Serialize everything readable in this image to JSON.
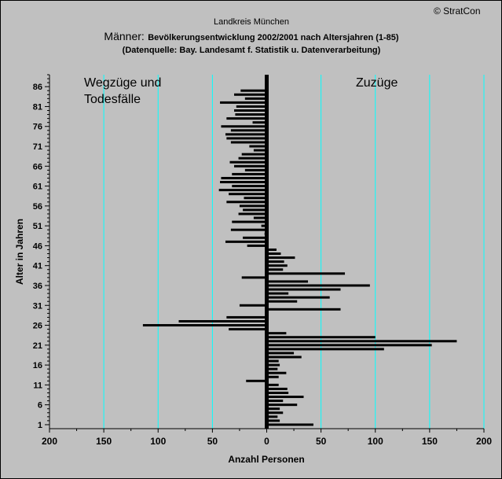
{
  "copyright": "© StratCon",
  "chart_data": {
    "type": "bar",
    "orientation": "horizontal",
    "title": "Landkreis München",
    "title_prefix": "Männer:",
    "subtitle": "Bevölkerungsentwicklung 2002/2001  nach Altersjahren (1-85)",
    "source": "(Datenquelle: Bay. Landesamt f. Statistik u. Datenverarbeitung)",
    "xlabel": "Anzahl Personen",
    "ylabel": "Alter in Jahren",
    "left_label_line1": "Wegzüge und",
    "left_label_line2": "Todesfälle",
    "right_label": "Zuzüge",
    "left_label_color": "#ff0000",
    "right_label_color": "#008000",
    "bar_color": "#000000",
    "gridline_color": "#00ffff",
    "xlim": [
      -200,
      200
    ],
    "ylim": [
      0,
      89
    ],
    "x_ticks": [
      -200,
      -150,
      -100,
      -50,
      0,
      50,
      100,
      150,
      200
    ],
    "x_tick_labels": [
      "200",
      "150",
      "100",
      "50",
      "0",
      "50",
      "100",
      "150",
      "200"
    ],
    "y_tick_labels": [
      1,
      6,
      11,
      16,
      21,
      26,
      31,
      36,
      41,
      46,
      51,
      56,
      61,
      66,
      71,
      76,
      81,
      86
    ],
    "ages": [
      1,
      2,
      3,
      4,
      5,
      6,
      7,
      8,
      9,
      10,
      11,
      12,
      13,
      14,
      15,
      16,
      17,
      18,
      19,
      20,
      21,
      22,
      23,
      24,
      25,
      26,
      27,
      28,
      29,
      30,
      31,
      32,
      33,
      34,
      35,
      36,
      37,
      38,
      39,
      40,
      41,
      42,
      43,
      44,
      45,
      46,
      47,
      48,
      49,
      50,
      51,
      52,
      53,
      54,
      55,
      56,
      57,
      58,
      59,
      60,
      61,
      62,
      63,
      64,
      65,
      66,
      67,
      68,
      69,
      70,
      71,
      72,
      73,
      74,
      75,
      76,
      77,
      78,
      79,
      80,
      81,
      82,
      83,
      84,
      85
    ],
    "values": [
      43,
      12,
      10,
      15,
      12,
      28,
      15,
      34,
      20,
      19,
      11,
      -19,
      11,
      18,
      10,
      12,
      11,
      32,
      25,
      108,
      152,
      175,
      100,
      18,
      -35,
      -114,
      -81,
      -37,
      0,
      68,
      -25,
      28,
      58,
      20,
      68,
      95,
      38,
      -23,
      72,
      15,
      19,
      16,
      26,
      13,
      9,
      -18,
      -38,
      -22,
      -2,
      -33,
      -5,
      -32,
      -12,
      -26,
      -22,
      -25,
      -37,
      -21,
      -35,
      -44,
      -32,
      -43,
      -42,
      -32,
      -20,
      -30,
      -34,
      -26,
      -23,
      -12,
      -16,
      -33,
      -37,
      -38,
      -33,
      -42,
      -13,
      -37,
      -29,
      -30,
      -28,
      -43,
      -20,
      -30,
      -24
    ]
  }
}
